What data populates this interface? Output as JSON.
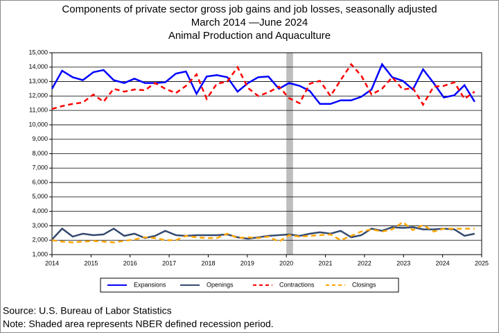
{
  "chart_data": {
    "type": "line",
    "title": "Components of private sector gross job gains and job losses, seasonally adjusted",
    "subtitle": "March 2014 —June 2024",
    "subtitle2": "Animal Production and Aquaculture",
    "source": "Source: U.S. Bureau of Labor Statistics",
    "note": "Note: Shaded area represents NBER defined recession period.",
    "recession": [
      2020.0,
      2020.17
    ],
    "x": [
      2014.0,
      2014.26,
      2014.53,
      2014.79,
      2015.06,
      2015.32,
      2015.58,
      2015.85,
      2016.11,
      2016.38,
      2016.64,
      2016.9,
      2017.17,
      2017.43,
      2017.7,
      2017.96,
      2018.22,
      2018.49,
      2018.75,
      2019.02,
      2019.28,
      2019.54,
      2019.81,
      2020.07,
      2020.34,
      2020.6,
      2020.86,
      2021.13,
      2021.39,
      2021.66,
      2021.92,
      2022.18,
      2022.45,
      2022.71,
      2022.98,
      2023.24,
      2023.5,
      2023.77,
      2024.03,
      2024.3,
      2024.56,
      2024.82
    ],
    "series": [
      {
        "name": "Expansions",
        "color": "#0000ff",
        "dashed": false,
        "values": [
          12500,
          13750,
          13300,
          13100,
          13650,
          13800,
          13100,
          12900,
          13200,
          12900,
          12900,
          12950,
          13550,
          13700,
          12150,
          13350,
          13450,
          13300,
          12300,
          12900,
          13300,
          13350,
          12500,
          12900,
          12700,
          12350,
          11450,
          11450,
          11700,
          11700,
          11950,
          12450,
          14200,
          13300,
          13050,
          12450,
          13850,
          12900,
          11900,
          12050,
          12750,
          11600
        ]
      },
      {
        "name": "Openings",
        "color": "#34496e",
        "dashed": false,
        "values": [
          2050,
          2800,
          2250,
          2450,
          2350,
          2400,
          2800,
          2300,
          2450,
          2150,
          2300,
          2650,
          2350,
          2300,
          2350,
          2350,
          2350,
          2400,
          2200,
          2100,
          2200,
          2300,
          2350,
          2400,
          2300,
          2450,
          2550,
          2450,
          2650,
          2200,
          2350,
          2800,
          2650,
          2900,
          2850,
          2900,
          2750,
          2750,
          2800,
          2750,
          2300,
          2450
        ]
      },
      {
        "name": "Contractions",
        "color": "#ff0000",
        "dashed": true,
        "values": [
          11100,
          11300,
          11450,
          11550,
          12100,
          11600,
          12500,
          12300,
          12450,
          12400,
          12900,
          12500,
          12200,
          12700,
          13500,
          11800,
          12850,
          13000,
          14000,
          12550,
          12000,
          12250,
          12650,
          11850,
          11500,
          12850,
          13050,
          12000,
          13100,
          14200,
          13400,
          12100,
          12500,
          13300,
          12450,
          12550,
          11400,
          12650,
          12700,
          12950,
          11800,
          12300
        ]
      },
      {
        "name": "Closings",
        "color": "#ffa500",
        "dashed": true,
        "values": [
          2000,
          1900,
          1850,
          1900,
          1950,
          1900,
          1850,
          1950,
          2050,
          2200,
          2150,
          2000,
          2000,
          2300,
          2200,
          2150,
          2150,
          2450,
          2150,
          2200,
          2150,
          2250,
          1900,
          2350,
          2250,
          2300,
          2350,
          2400,
          2000,
          2300,
          2600,
          2750,
          2600,
          2750,
          3250,
          2700,
          3050,
          2600,
          2800,
          2800,
          2800,
          2800
        ]
      }
    ],
    "xlim": [
      2014,
      2025
    ],
    "xticks": [
      2014,
      2015,
      2016,
      2017,
      2018,
      2019,
      2020,
      2021,
      2022,
      2023,
      2024,
      2025
    ],
    "ylim": [
      1000,
      15000
    ],
    "yticks": [
      {
        "value": 1000,
        "label": "1,000"
      },
      {
        "value": 2000,
        "label": "2,000"
      },
      {
        "value": 3000,
        "label": "3,000"
      },
      {
        "value": 4000,
        "label": "4,000"
      },
      {
        "value": 5000,
        "label": "5,000"
      },
      {
        "value": 6000,
        "label": "6,000"
      },
      {
        "value": 7000,
        "label": "7,000"
      },
      {
        "value": 8000,
        "label": "8,000"
      },
      {
        "value": 9000,
        "label": "9,000"
      },
      {
        "value": 10000,
        "label": "10,000"
      },
      {
        "value": 11000,
        "label": "11,000"
      },
      {
        "value": 12000,
        "label": "12,000"
      },
      {
        "value": 13000,
        "label": "13,000"
      },
      {
        "value": 14000,
        "label": "14,000"
      },
      {
        "value": 15000,
        "label": "15,000"
      }
    ],
    "grid": true
  }
}
